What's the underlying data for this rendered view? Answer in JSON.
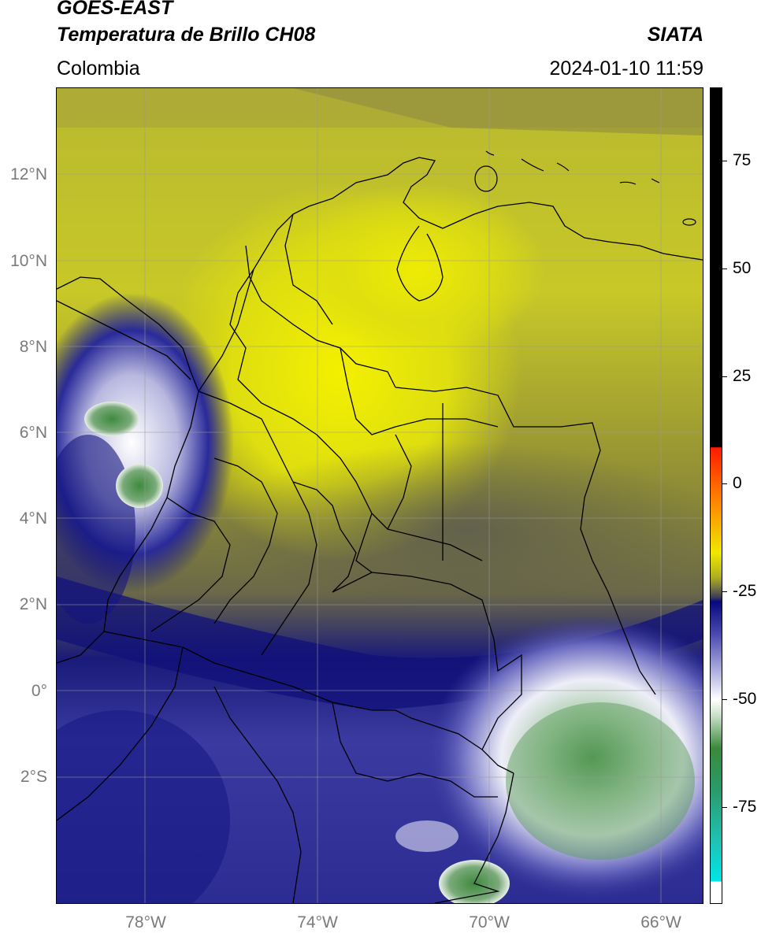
{
  "header": {
    "satellite": "GOES-EAST",
    "product": "Temperatura de Brillo CH08",
    "agency": "SIATA",
    "region": "Colombia",
    "timestamp": "2024-01-10 11:59"
  },
  "map": {
    "lat_ticks": [
      "12°N",
      "10°N",
      "8°N",
      "6°N",
      "4°N",
      "2°N",
      "0°",
      "2°S"
    ],
    "lon_ticks": [
      "78°W",
      "74°W",
      "70°W",
      "66°W"
    ]
  },
  "colorbar": {
    "ticks": [
      "75",
      "50",
      "25",
      "0",
      "-25",
      "-50",
      "-75"
    ],
    "colors": {
      "black": "#000000",
      "red": "#ff2200",
      "orange": "#ff8800",
      "yellow": "#eeee00",
      "olive": "#8a8a20",
      "gray": "#5a5a4a",
      "navy": "#0a0a80",
      "blue": "#4a4ab0",
      "white": "#ffffff",
      "green": "#3a8a3a",
      "teal": "#20b8a0",
      "cyan": "#00e0e0"
    }
  }
}
